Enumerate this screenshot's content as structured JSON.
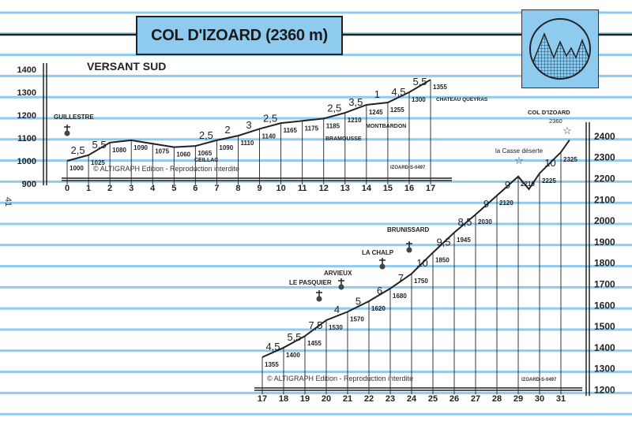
{
  "title": "COL D'IZOARD (2360 m)",
  "subtitle": "VERSANT SUD",
  "page_number": "41",
  "colors": {
    "rule": "#8ecbee",
    "ink": "#222222",
    "accent": "#8ecbee"
  },
  "logo": "mountain-badge",
  "chart_data": [
    {
      "type": "line",
      "part": "km 0-17",
      "x": [
        0,
        1,
        2,
        3,
        4,
        5,
        6,
        7,
        8,
        9,
        10,
        11,
        12,
        13,
        14,
        15,
        16,
        17
      ],
      "elevation": [
        1000,
        1025,
        1080,
        1090,
        1075,
        1060,
        1065,
        1090,
        1110,
        1140,
        1165,
        1175,
        1185,
        1210,
        1245,
        1255,
        1300,
        1355
      ],
      "gradients": [
        {
          "km": 0.5,
          "pct": "2,5"
        },
        {
          "km": 1.5,
          "pct": "5,5"
        },
        {
          "km": 6.5,
          "pct": "2,5"
        },
        {
          "km": 7.5,
          "pct": "2"
        },
        {
          "km": 8.5,
          "pct": "3"
        },
        {
          "km": 9.5,
          "pct": "2,5"
        },
        {
          "km": 12.5,
          "pct": "2,5"
        },
        {
          "km": 13.5,
          "pct": "3,5"
        },
        {
          "km": 14.5,
          "pct": "1"
        },
        {
          "km": 15.5,
          "pct": "4,5"
        },
        {
          "km": 16.5,
          "pct": "5,5"
        }
      ],
      "y_ticks": [
        900,
        1000,
        1100,
        1200,
        1300,
        1400
      ],
      "ylim": [
        900,
        1400
      ],
      "places": [
        {
          "name": "GUILLESTRE",
          "km": 0
        },
        {
          "name": "CEILLAC",
          "km": 6
        },
        {
          "name": "BRAMOUSSE",
          "km": 11.5
        },
        {
          "name": "MONTBARDON",
          "km": 13.5
        },
        {
          "name": "CHATEAU QUEYRAS",
          "km": 17
        }
      ],
      "credit": "© ALTIGRAPH Edition - Reproduction interdite",
      "code": "IZOARD-S-0497"
    },
    {
      "type": "line",
      "part": "km 17-31",
      "x": [
        17,
        18,
        19,
        20,
        21,
        22,
        23,
        24,
        25,
        26,
        27,
        28,
        29,
        30,
        31
      ],
      "elevation": [
        1355,
        1400,
        1455,
        1530,
        1570,
        1620,
        1680,
        1750,
        1850,
        1945,
        2030,
        2120,
        2210,
        2225,
        2325
      ],
      "summit": {
        "name": "COL D'IZOARD",
        "elevation": "2360"
      },
      "gradients": [
        {
          "km": 17.5,
          "pct": "4,5"
        },
        {
          "km": 18.5,
          "pct": "5,5"
        },
        {
          "km": 19.5,
          "pct": "7,5"
        },
        {
          "km": 20.5,
          "pct": "4"
        },
        {
          "km": 21.5,
          "pct": "5"
        },
        {
          "km": 22.5,
          "pct": "6"
        },
        {
          "km": 23.5,
          "pct": "7"
        },
        {
          "km": 24.5,
          "pct": "10"
        },
        {
          "km": 25.5,
          "pct": "9,5"
        },
        {
          "km": 26.5,
          "pct": "8,5"
        },
        {
          "km": 27.5,
          "pct": "9"
        },
        {
          "km": 28.5,
          "pct": "9"
        },
        {
          "km": 30.5,
          "pct": "10"
        }
      ],
      "y_ticks": [
        1200,
        1300,
        1400,
        1500,
        1600,
        1700,
        1800,
        1900,
        2000,
        2100,
        2200,
        2300,
        2400
      ],
      "ylim": [
        1200,
        2400
      ],
      "places": [
        {
          "name": "LE PASQUIER"
        },
        {
          "name": "ARVIEUX"
        },
        {
          "name": "LA CHALP"
        },
        {
          "name": "BRUNISSARD"
        },
        {
          "name": "la Casse déserte"
        }
      ],
      "credit": "© ALTIGRAPH Edition - Reproduction interdite",
      "code": "IZOARD-S-0497"
    }
  ]
}
